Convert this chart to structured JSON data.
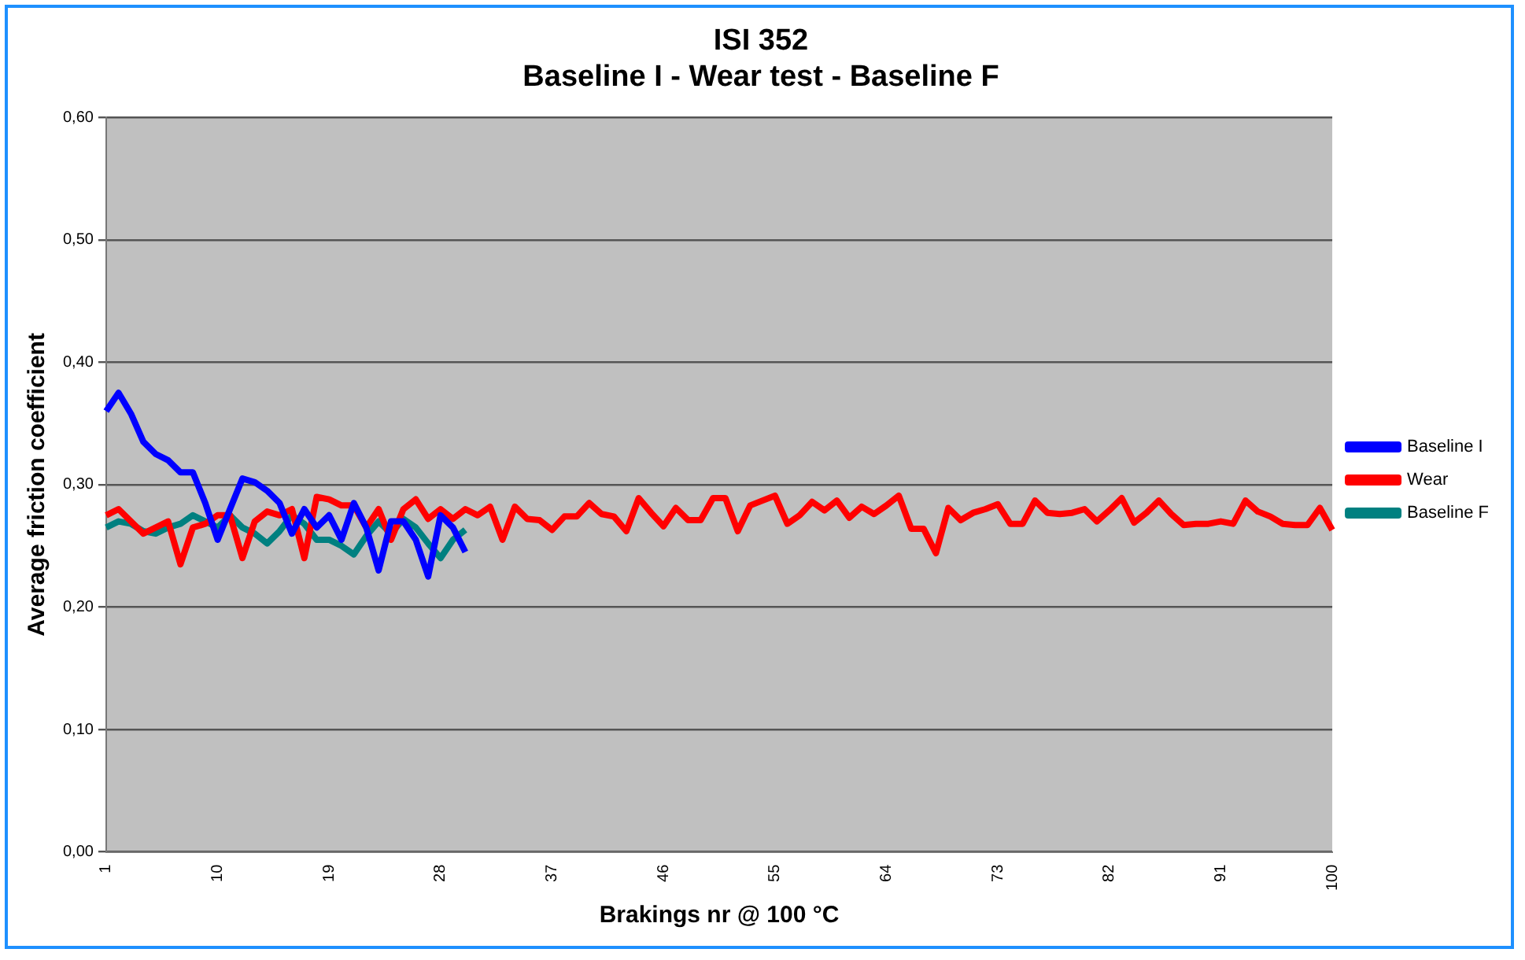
{
  "chart_data": {
    "type": "line",
    "title": [
      "ISI 352",
      "Baseline I - Wear test - Baseline F"
    ],
    "xlabel": "Brakings nr @ 100 °C",
    "ylabel": "Average friction coefficient",
    "categories": [
      "1",
      null,
      null,
      null,
      null,
      null,
      null,
      null,
      null,
      "10",
      null,
      null,
      null,
      null,
      null,
      null,
      null,
      null,
      "19",
      null,
      null,
      null,
      null,
      null,
      null,
      null,
      null,
      "28",
      null,
      null,
      null,
      null,
      null,
      null,
      null,
      null,
      "37",
      null,
      null,
      null,
      null,
      null,
      null,
      null,
      null,
      "46",
      null,
      null,
      null,
      null,
      null,
      null,
      null,
      null,
      "55",
      null,
      null,
      null,
      null,
      null,
      null,
      null,
      null,
      "64",
      null,
      null,
      null,
      null,
      null,
      null,
      null,
      null,
      "73",
      null,
      null,
      null,
      null,
      null,
      null,
      null,
      null,
      "82",
      null,
      null,
      null,
      null,
      null,
      null,
      null,
      null,
      "91",
      null,
      null,
      null,
      null,
      null,
      null,
      null,
      null,
      "100"
    ],
    "ylim": [
      0,
      0.6
    ],
    "yticks": [
      {
        "value": 0,
        "label": "0,00"
      },
      {
        "value": 0.1,
        "label": "0,10"
      },
      {
        "value": 0.2,
        "label": "0,20"
      },
      {
        "value": 0.3,
        "label": "0,30"
      },
      {
        "value": 0.4,
        "label": "0,40"
      },
      {
        "value": 0.5,
        "label": "0,50"
      },
      {
        "value": 0.6,
        "label": "0,60"
      }
    ],
    "grid": "y",
    "legend": "right",
    "marker": "none",
    "series": [
      {
        "name": "Baseline I",
        "color": "#0000ff",
        "values": [
          0.36,
          0.375,
          0.358,
          0.335,
          0.325,
          0.32,
          0.31,
          0.31,
          0.285,
          0.255,
          0.28,
          0.305,
          0.302,
          0.295,
          0.285,
          0.26,
          0.28,
          0.265,
          0.275,
          0.255,
          0.285,
          0.265,
          0.23,
          0.27,
          0.27,
          0.255,
          0.225,
          0.275,
          0.265,
          0.245,
          null,
          null,
          null,
          null,
          null,
          null,
          null,
          null,
          null,
          null,
          null,
          null,
          null,
          null,
          null,
          null,
          null,
          null,
          null,
          null,
          null,
          null,
          null,
          null,
          null,
          null,
          null,
          null,
          null,
          null,
          null,
          null,
          null,
          null,
          null,
          null,
          null,
          null,
          null,
          null,
          null,
          null,
          null,
          null,
          null,
          null,
          null,
          null,
          null,
          null,
          null,
          null,
          null,
          null,
          null,
          null,
          null,
          null,
          null,
          null,
          null,
          null,
          null,
          null,
          null,
          null,
          null,
          null,
          null,
          null
        ]
      },
      {
        "name": "Wear",
        "color": "#ff0000",
        "values": [
          0.275,
          0.28,
          0.27,
          0.26,
          0.265,
          0.27,
          0.235,
          0.265,
          0.268,
          0.275,
          0.275,
          0.24,
          0.27,
          0.278,
          0.275,
          0.28,
          0.24,
          0.29,
          0.288,
          0.283,
          0.283,
          0.265,
          0.28,
          0.255,
          0.28,
          0.288,
          0.272,
          0.28,
          0.272,
          0.28,
          0.275,
          0.282,
          0.255,
          0.282,
          0.272,
          0.271,
          0.263,
          0.274,
          0.274,
          0.285,
          0.276,
          0.274,
          0.262,
          0.289,
          0.277,
          0.266,
          0.281,
          0.271,
          0.271,
          0.289,
          0.289,
          0.262,
          0.283,
          0.287,
          0.291,
          0.268,
          0.275,
          0.286,
          0.279,
          0.287,
          0.273,
          0.282,
          0.276,
          0.283,
          0.291,
          0.264,
          0.264,
          0.244,
          0.281,
          0.271,
          0.277,
          0.28,
          0.284,
          0.268,
          0.268,
          0.287,
          0.277,
          0.276,
          0.277,
          0.28,
          0.27,
          0.279,
          0.289,
          0.269,
          0.277,
          0.287,
          0.276,
          0.267,
          0.268,
          0.268,
          0.27,
          0.268,
          0.287,
          0.278,
          0.274,
          0.268,
          0.267,
          0.267,
          0.281,
          0.263
        ]
      },
      {
        "name": "Baseline F",
        "color": "#008080",
        "values": [
          0.265,
          0.27,
          0.268,
          0.262,
          0.26,
          0.265,
          0.268,
          0.275,
          0.27,
          0.265,
          0.275,
          0.265,
          0.26,
          0.252,
          0.262,
          0.275,
          0.268,
          0.255,
          0.255,
          0.25,
          0.243,
          0.258,
          0.27,
          0.26,
          0.272,
          0.265,
          0.252,
          0.24,
          0.255,
          0.263,
          null,
          null,
          null,
          null,
          null,
          null,
          null,
          null,
          null,
          null,
          null,
          null,
          null,
          null,
          null,
          null,
          null,
          null,
          null,
          null,
          null,
          null,
          null,
          null,
          null,
          null,
          null,
          null,
          null,
          null,
          null,
          null,
          null,
          null,
          null,
          null,
          null,
          null,
          null,
          null,
          null,
          null,
          null,
          null,
          null,
          null,
          null,
          null,
          null,
          null,
          null,
          null,
          null,
          null,
          null,
          null,
          null,
          null,
          null,
          null,
          null,
          null,
          null,
          null,
          null,
          null,
          null,
          null,
          null,
          null
        ]
      }
    ]
  }
}
